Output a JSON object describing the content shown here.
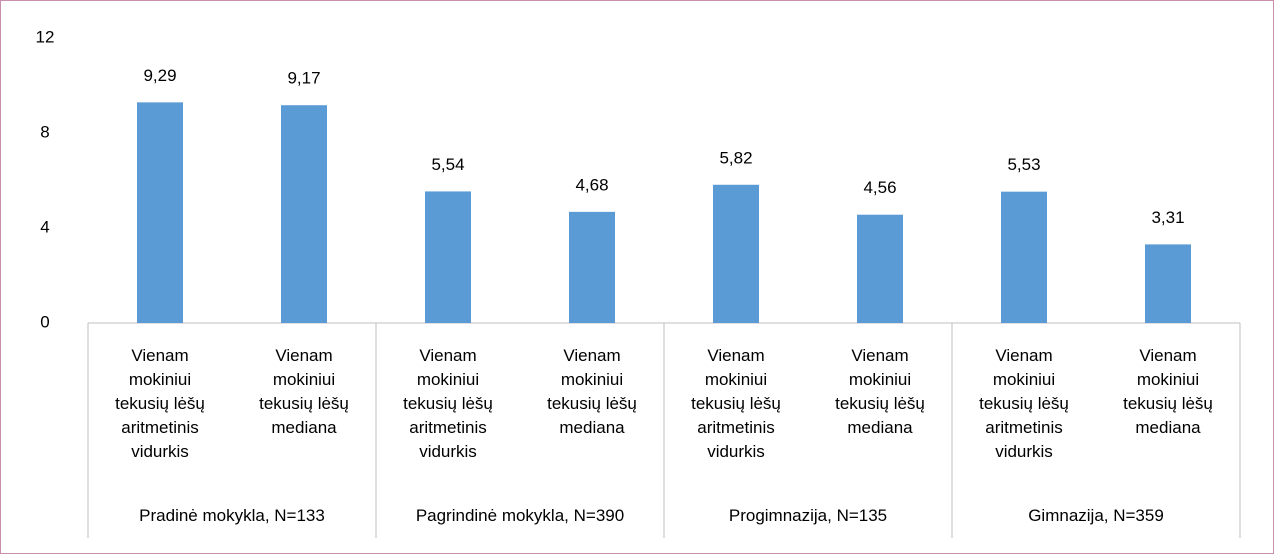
{
  "chart_data": {
    "type": "bar",
    "color": "#5b9bd5",
    "ylim": [
      0,
      12
    ],
    "yticks": [
      0,
      4,
      8,
      12
    ],
    "grid": false,
    "groups": [
      {
        "name": "Pradinė mokykla,  N=133",
        "categories": [
          "Vienam mokiniui tekusių lėšų aritmetinis vidurkis",
          "Vienam mokiniui tekusių lėšų mediana"
        ],
        "values": [
          9.29,
          9.17
        ],
        "value_labels": [
          "9,29",
          "9,17"
        ]
      },
      {
        "name": "Pagrindinė mokykla, N=390",
        "categories": [
          "Vienam mokiniui tekusių lėšų aritmetinis vidurkis",
          "Vienam mokiniui tekusių lėšų mediana"
        ],
        "values": [
          5.54,
          4.68
        ],
        "value_labels": [
          "5,54",
          "4,68"
        ]
      },
      {
        "name": "Progimnazija, N=135",
        "categories": [
          "Vienam mokiniui tekusių lėšų aritmetinis vidurkis",
          "Vienam mokiniui tekusių lėšų mediana"
        ],
        "values": [
          5.82,
          4.56
        ],
        "value_labels": [
          "5,82",
          "4,56"
        ]
      },
      {
        "name": "Gimnazija, N=359",
        "categories": [
          "Vienam mokiniui tekusių lėšų aritmetinis vidurkis",
          "Vienam mokiniui tekusių lėšų mediana"
        ],
        "values": [
          5.53,
          3.31
        ],
        "value_labels": [
          "5,53",
          "3,31"
        ]
      }
    ]
  }
}
